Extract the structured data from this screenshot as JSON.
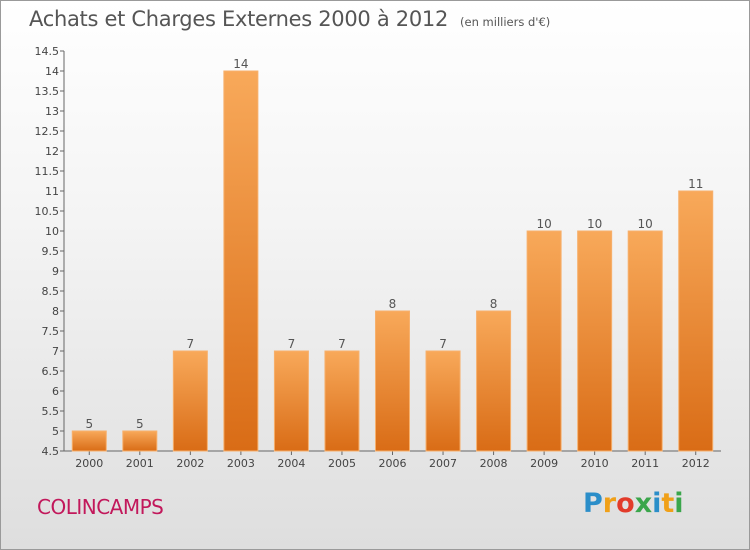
{
  "title": "Achats et Charges Externes 2000 à 2012",
  "unit": "(en milliers d'€)",
  "commune": "COLINCAMPS",
  "logo": {
    "letters": [
      "P",
      "r",
      "o",
      "x",
      "i",
      "t",
      "i"
    ],
    "colors": [
      "#2b8ec9",
      "#f0a018",
      "#e23b2a",
      "#3aa64b",
      "#2b8ec9",
      "#f0a018",
      "#3aa64b"
    ]
  },
  "chart_data": {
    "type": "bar",
    "title": "Achats et Charges Externes 2000 à 2012",
    "categories": [
      "2000",
      "2001",
      "2002",
      "2003",
      "2004",
      "2005",
      "2006",
      "2007",
      "2008",
      "2009",
      "2010",
      "2011",
      "2012"
    ],
    "values": [
      5,
      5,
      7,
      14,
      7,
      7,
      8,
      7,
      8,
      10,
      10,
      10,
      11
    ],
    "ylim": [
      4.5,
      14.5
    ],
    "yticks": [
      "4.5",
      "5",
      "5.5",
      "6",
      "6.5",
      "7",
      "7.5",
      "8",
      "8.5",
      "9",
      "9.5",
      "10",
      "10.5",
      "11",
      "11.5",
      "12",
      "12.5",
      "13",
      "13.5",
      "14",
      "14.5"
    ],
    "grid": false,
    "colors": {
      "bar_top": "#f8a95a",
      "bar_bottom": "#d96c16",
      "bar_edge": "#f7b06c"
    }
  }
}
